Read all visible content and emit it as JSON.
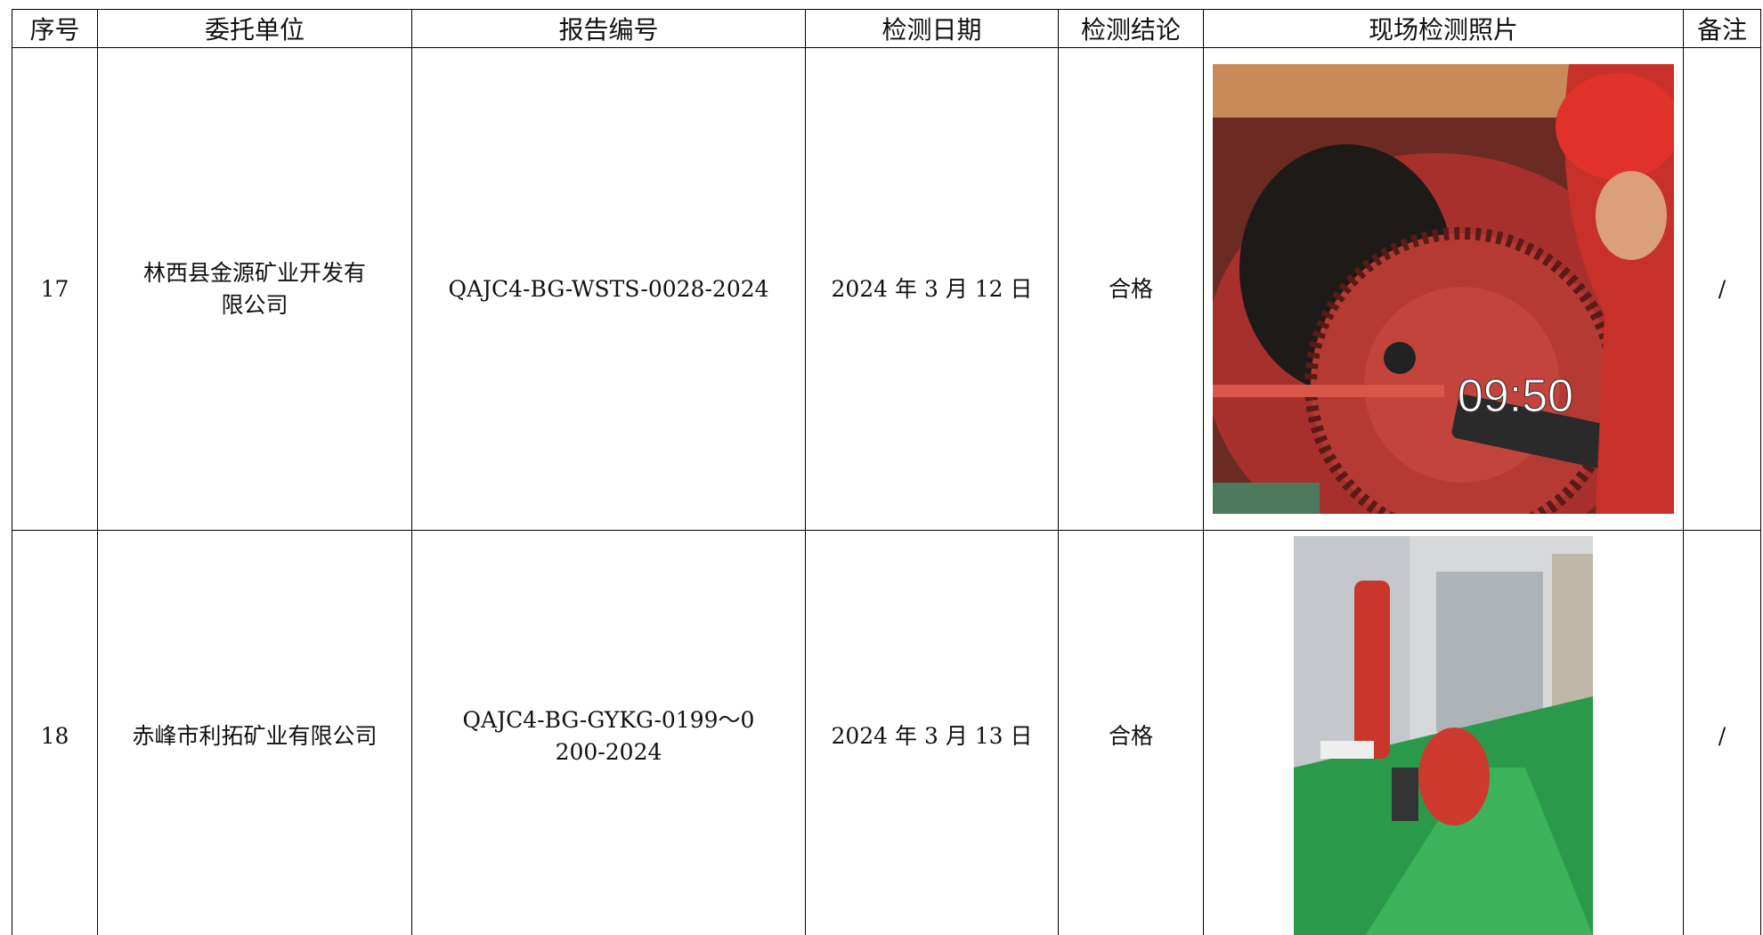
{
  "header": [
    "序号",
    "委托单位",
    "报告编号",
    "检测日期",
    "检测结论",
    "现场检测照片",
    "备注"
  ],
  "rows": [
    {
      "serial": "17",
      "client": "林西县金源矿业开发有限公司",
      "report_no": "QAJC4-BG-WSTS-0028-2024",
      "date": "2024 年 3 月 12 日",
      "conclusion": "合格",
      "photo_text": "09:50",
      "remark": "/"
    },
    {
      "serial": "18",
      "client": "赤峰市利拓矿业有限公司",
      "report_no": "QAJC4-BG-GYKG-0199～0200-2024",
      "date": "2024 年 3 月 13 日",
      "conclusion": "合格",
      "remark": "/"
    }
  ]
}
